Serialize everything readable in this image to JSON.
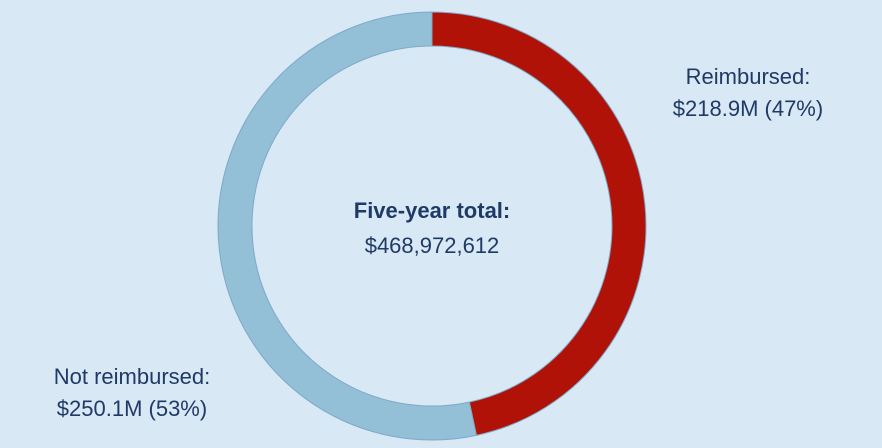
{
  "chart_data": {
    "type": "donut",
    "categories": [
      "Reimbursed:",
      "Not reimbursed:"
    ],
    "values": [
      218900000,
      250100000
    ],
    "value_labels": [
      "$218.9M (47%)",
      "$250.1M (53%)"
    ],
    "colors": [
      "#b01208",
      "#93bfd7"
    ],
    "center_title": "Five-year total:",
    "total": 468972612,
    "total_label": "$468,972,612"
  }
}
